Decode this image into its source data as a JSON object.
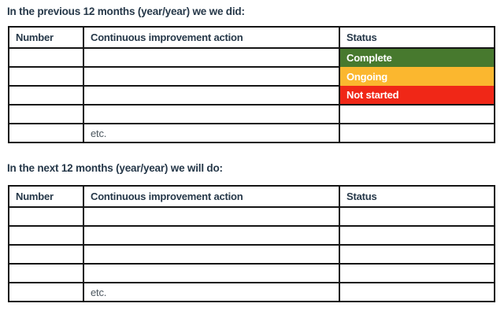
{
  "colors": {
    "complete_bg": "#47792e",
    "ongoing_bg": "#fbb72f",
    "not_started_bg": "#f02717",
    "status_text": "#ffffff",
    "border": "#151515",
    "heading_text": "#263849",
    "etc_text": "#4d5860"
  },
  "previous_section": {
    "title": "In the previous 12 months (year/year) we we did:",
    "headers": [
      "Number",
      "Continuous improvement action",
      "Status"
    ],
    "rows": [
      {
        "number": "",
        "action": "",
        "status": "Complete",
        "status_color": "#47792e"
      },
      {
        "number": "",
        "action": "",
        "status": "Ongoing",
        "status_color": "#fbb72f"
      },
      {
        "number": "",
        "action": "",
        "status": "Not started",
        "status_color": "#f02717"
      },
      {
        "number": "",
        "action": "",
        "status": ""
      },
      {
        "number": "",
        "action": "etc.",
        "status": ""
      }
    ]
  },
  "next_section": {
    "title": "In the next 12 months (year/year) we will do:",
    "headers": [
      "Number",
      "Continuous improvement action",
      "Status"
    ],
    "rows": [
      {
        "number": "",
        "action": "",
        "status": ""
      },
      {
        "number": "",
        "action": "",
        "status": ""
      },
      {
        "number": "",
        "action": "",
        "status": ""
      },
      {
        "number": "",
        "action": "",
        "status": ""
      },
      {
        "number": "",
        "action": "etc.",
        "status": ""
      }
    ]
  }
}
